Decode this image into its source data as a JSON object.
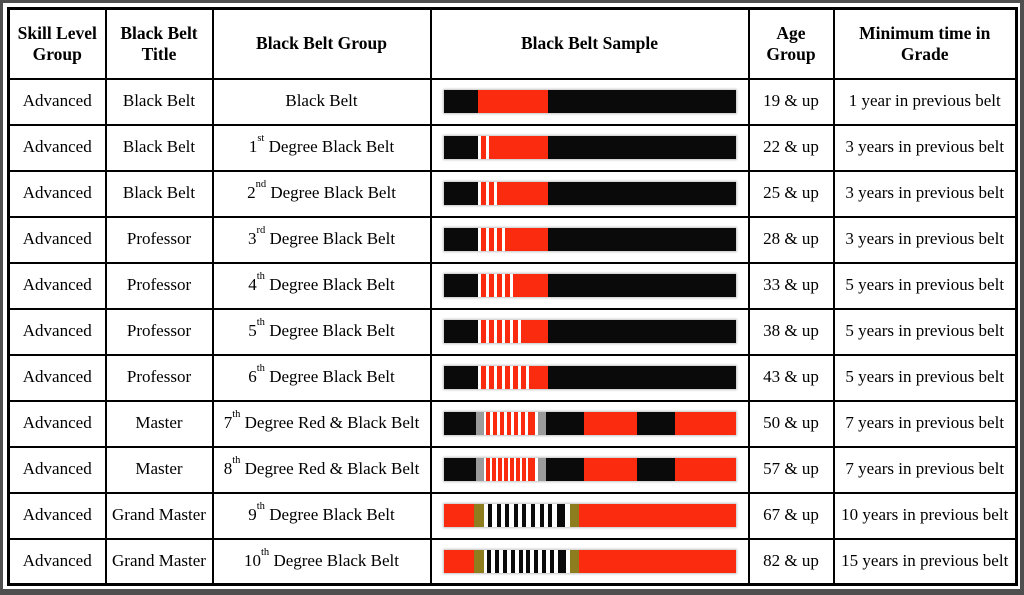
{
  "colors": {
    "belt_red": "#fa2b0f",
    "belt_black": "#0a0a0a",
    "gold": "#8e7d1f",
    "silver": "#9b9b9b",
    "table_border": "#000000",
    "frame_gray": "#4f4f4f"
  },
  "table": {
    "headers": [
      "Skill Level Group",
      "Black Belt Title",
      "Black Belt Group",
      "Black Belt Sample",
      "Age Group",
      "Minimum time in Grade"
    ],
    "rows": [
      {
        "skill": "Advanced",
        "title": "Black Belt",
        "group": {
          "ord": "",
          "sup": "",
          "text": "Black Belt"
        },
        "belt": {
          "type": "black",
          "stripes": 0
        },
        "age": "19 & up",
        "time": "1 year in previous belt"
      },
      {
        "skill": "Advanced",
        "title": "Black Belt",
        "group": {
          "ord": "1",
          "sup": "st",
          "text": " Degree Black Belt"
        },
        "belt": {
          "type": "black",
          "stripes": 1
        },
        "age": "22 & up",
        "time": "3 years in previous belt"
      },
      {
        "skill": "Advanced",
        "title": "Black Belt",
        "group": {
          "ord": "2",
          "sup": "nd",
          "text": " Degree Black Belt"
        },
        "belt": {
          "type": "black",
          "stripes": 2
        },
        "age": "25 & up",
        "time": "3 years in previous belt"
      },
      {
        "skill": "Advanced",
        "title": "Professor",
        "group": {
          "ord": "3",
          "sup": "rd",
          "text": " Degree Black Belt"
        },
        "belt": {
          "type": "black",
          "stripes": 3
        },
        "age": "28 & up",
        "time": "3 years in previous belt"
      },
      {
        "skill": "Advanced",
        "title": "Professor",
        "group": {
          "ord": "4",
          "sup": "th",
          "text": " Degree Black Belt"
        },
        "belt": {
          "type": "black",
          "stripes": 4
        },
        "age": "33 & up",
        "time": "5 years in previous belt"
      },
      {
        "skill": "Advanced",
        "title": "Professor",
        "group": {
          "ord": "5",
          "sup": "th",
          "text": " Degree Black Belt"
        },
        "belt": {
          "type": "black",
          "stripes": 5
        },
        "age": "38 & up",
        "time": "5 years in previous belt"
      },
      {
        "skill": "Advanced",
        "title": "Professor",
        "group": {
          "ord": "6",
          "sup": "th",
          "text": " Degree Black Belt"
        },
        "belt": {
          "type": "black",
          "stripes": 6
        },
        "age": "43 & up",
        "time": "5 years in previous belt"
      },
      {
        "skill": "Advanced",
        "title": "Master",
        "group": {
          "ord": "7",
          "sup": "th",
          "text": " Degree Red & Black Belt"
        },
        "belt": {
          "type": "red-black",
          "stripes": 7
        },
        "age": "50 & up",
        "time": "7 years in previous belt"
      },
      {
        "skill": "Advanced",
        "title": "Master",
        "group": {
          "ord": "8",
          "sup": "th",
          "text": " Degree Red & Black Belt"
        },
        "belt": {
          "type": "red-black",
          "stripes": 8
        },
        "age": "57 & up",
        "time": "7 years in previous belt"
      },
      {
        "skill": "Advanced",
        "title": "Grand Master",
        "group": {
          "ord": "9",
          "sup": "th",
          "text": " Degree Black Belt"
        },
        "belt": {
          "type": "red",
          "stripes": 9
        },
        "age": "67 & up",
        "time": "10 years in previous belt"
      },
      {
        "skill": "Advanced",
        "title": "Grand Master",
        "group": {
          "ord": "10",
          "sup": "th",
          "text": " Degree Black Belt"
        },
        "belt": {
          "type": "red",
          "stripes": 10
        },
        "age": "82 & up",
        "time": "15 years in previous belt"
      }
    ]
  }
}
